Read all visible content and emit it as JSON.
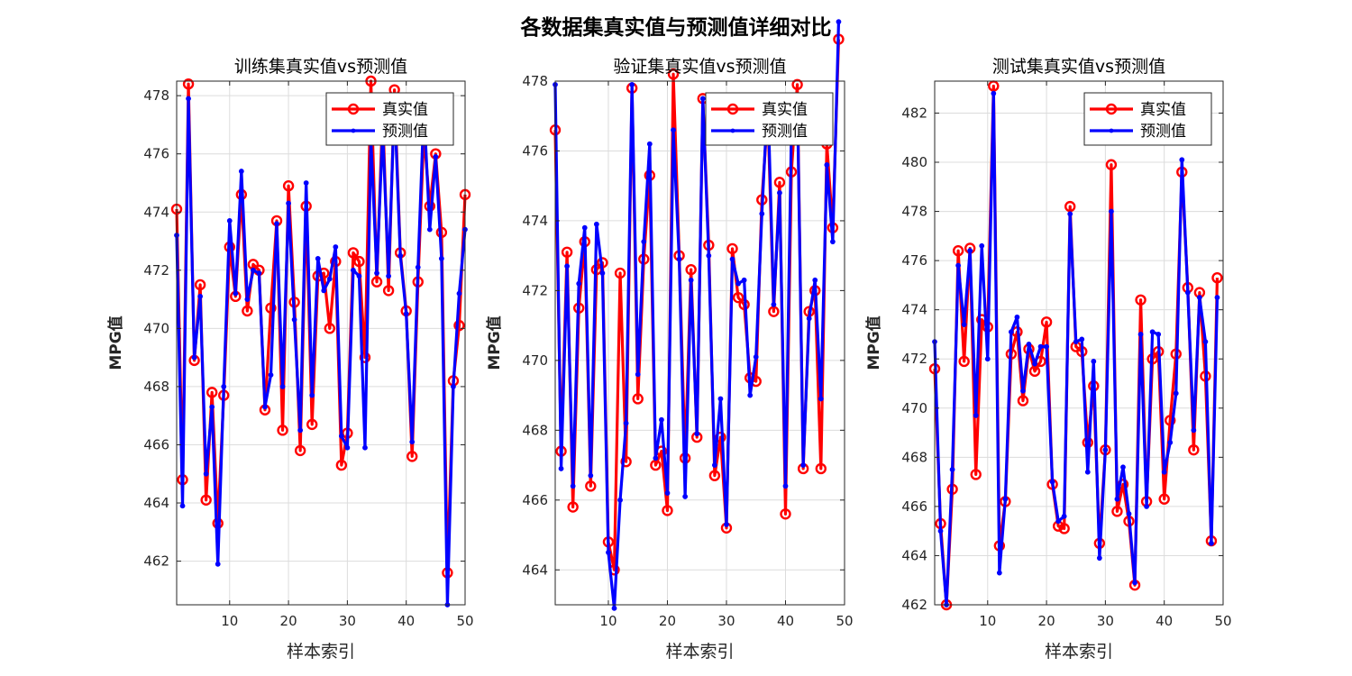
{
  "figure_title": "各数据集真实值与预测值详细对比",
  "colors": {
    "true": "#ff0000",
    "pred": "#0000ff"
  },
  "chart_data": [
    {
      "type": "line",
      "title": "训练集真实值vs预测值",
      "xlabel": "样本索引",
      "ylabel": "MPG值",
      "xlim": [
        1,
        50
      ],
      "ylim": [
        460.5,
        478.5
      ],
      "xticks": [
        10,
        20,
        30,
        40,
        50
      ],
      "yticks": [
        462,
        464,
        466,
        468,
        470,
        472,
        474,
        476,
        478
      ],
      "grid": true,
      "legend_position": "top-right",
      "series": [
        {
          "name": "真实值",
          "marker": "circle",
          "values": [
            474.1,
            464.8,
            478.4,
            468.9,
            471.5,
            464.1,
            467.8,
            463.3,
            467.7,
            472.8,
            471.1,
            474.6,
            470.6,
            472.2,
            472.0,
            467.2,
            470.7,
            473.7,
            466.5,
            474.9,
            470.9,
            465.8,
            474.2,
            466.7,
            471.8,
            471.9,
            470.0,
            472.3,
            465.3,
            466.4,
            472.6,
            472.3,
            469.0,
            478.5,
            471.6,
            477.5,
            471.3,
            478.2,
            472.6,
            470.6,
            465.6,
            471.6,
            476.7,
            474.2,
            476.0,
            473.3,
            461.6,
            468.2,
            470.1,
            474.6
          ]
        },
        {
          "name": "预测值",
          "marker": "asterisk",
          "values": [
            473.2,
            463.9,
            477.9,
            469.0,
            471.1,
            465.0,
            467.3,
            461.9,
            468.0,
            473.7,
            471.2,
            475.4,
            471.0,
            472.0,
            471.9,
            467.3,
            468.4,
            473.6,
            468.0,
            474.3,
            470.3,
            466.5,
            475.0,
            467.7,
            472.4,
            471.3,
            471.7,
            472.8,
            466.3,
            465.9,
            472.0,
            471.8,
            465.9,
            476.5,
            471.9,
            476.8,
            471.8,
            477.8,
            472.5,
            470.5,
            466.1,
            472.1,
            477.6,
            473.4,
            475.9,
            472.4,
            460.5,
            468.0,
            471.2,
            473.4
          ]
        }
      ]
    },
    {
      "type": "line",
      "title": "验证集真实值vs预测值",
      "xlabel": "样本索引",
      "ylabel": "MPG值",
      "xlim": [
        1,
        50
      ],
      "ylim": [
        463,
        478
      ],
      "xticks": [
        10,
        20,
        30,
        40,
        50
      ],
      "yticks": [
        464,
        466,
        468,
        470,
        472,
        474,
        476,
        478
      ],
      "grid": true,
      "legend_position": "top-right",
      "series": [
        {
          "name": "真实值",
          "marker": "circle",
          "values": [
            476.6,
            467.4,
            473.1,
            465.8,
            471.5,
            473.4,
            466.4,
            472.6,
            472.8,
            464.8,
            464.0,
            472.5,
            467.1,
            477.8,
            468.9,
            472.9,
            475.3,
            467.0,
            467.4,
            465.7,
            478.2,
            473.0,
            467.2,
            472.6,
            467.8,
            477.5,
            473.3,
            466.7,
            467.8,
            465.2,
            473.2,
            471.8,
            471.6,
            469.5,
            469.4,
            474.6,
            477.1,
            471.4,
            475.1,
            465.6,
            475.4,
            477.9,
            466.9,
            471.4,
            472.0,
            466.9,
            476.2,
            473.8,
            479.2
          ]
        },
        {
          "name": "预测值",
          "marker": "asterisk",
          "values": [
            477.9,
            466.9,
            472.7,
            466.4,
            472.2,
            473.8,
            466.7,
            473.9,
            472.5,
            464.5,
            462.9,
            466.0,
            468.2,
            477.9,
            469.6,
            473.4,
            476.2,
            467.2,
            468.3,
            466.2,
            476.6,
            472.9,
            466.1,
            472.3,
            467.9,
            477.5,
            473.0,
            467.0,
            468.9,
            465.3,
            472.9,
            472.2,
            472.3,
            469.0,
            470.1,
            474.2,
            477.6,
            471.6,
            474.8,
            466.4,
            476.6,
            477.6,
            467.0,
            471.2,
            472.3,
            468.9,
            475.6,
            473.4,
            479.7
          ]
        }
      ]
    },
    {
      "type": "line",
      "title": "测试集真实值vs预测值",
      "xlabel": "样本索引",
      "ylabel": "MPG值",
      "xlim": [
        1,
        50
      ],
      "ylim": [
        462,
        483.3
      ],
      "xticks": [
        10,
        20,
        30,
        40,
        50
      ],
      "yticks": [
        462,
        464,
        466,
        468,
        470,
        472,
        474,
        476,
        478,
        480,
        482
      ],
      "grid": true,
      "legend_position": "top-right",
      "series": [
        {
          "name": "真实值",
          "marker": "circle",
          "values": [
            471.6,
            465.3,
            462.0,
            466.7,
            476.4,
            471.9,
            476.5,
            467.3,
            473.6,
            473.3,
            483.1,
            464.4,
            466.2,
            472.2,
            473.1,
            470.3,
            472.4,
            471.5,
            471.9,
            473.5,
            466.9,
            465.2,
            465.1,
            478.2,
            472.5,
            472.3,
            468.6,
            470.9,
            464.5,
            468.3,
            479.9,
            465.8,
            466.9,
            465.4,
            462.8,
            474.4,
            466.2,
            472.0,
            472.3,
            466.3,
            469.5,
            472.2,
            479.6,
            474.9,
            468.3,
            474.7,
            471.3,
            464.6,
            475.3
          ]
        },
        {
          "name": "预测值",
          "marker": "asterisk",
          "values": [
            472.7,
            465.0,
            462.0,
            467.5,
            475.8,
            473.4,
            476.4,
            469.7,
            476.6,
            472.0,
            482.8,
            463.3,
            466.3,
            473.1,
            473.7,
            470.7,
            472.6,
            471.8,
            472.5,
            472.5,
            467.0,
            465.4,
            465.6,
            477.9,
            472.7,
            472.8,
            467.4,
            471.9,
            463.9,
            468.3,
            478.0,
            466.3,
            467.6,
            465.7,
            462.9,
            473.0,
            466.0,
            473.1,
            473.0,
            467.4,
            468.6,
            470.6,
            480.1,
            474.7,
            469.1,
            474.5,
            472.7,
            464.5,
            474.5
          ]
        }
      ]
    }
  ]
}
